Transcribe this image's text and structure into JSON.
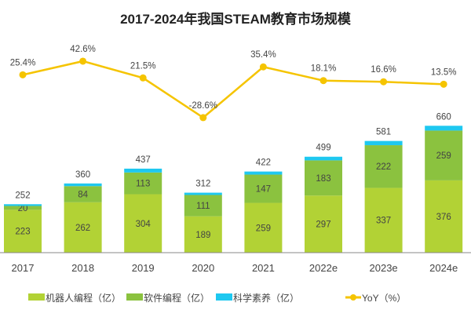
{
  "chart_data": {
    "type": "bar",
    "stacked": true,
    "title": "2017-2024年我国STEAM教育市场规模",
    "categories": [
      "2017",
      "2018",
      "2019",
      "2020",
      "2021",
      "2022e",
      "2023e",
      "2024e"
    ],
    "series": [
      {
        "name": "机器人编程（亿）",
        "values": [
          223,
          262,
          304,
          189,
          259,
          297,
          337,
          376
        ],
        "color": "#b2d235"
      },
      {
        "name": "软件编程（亿）",
        "values": [
          20,
          84,
          113,
          111,
          147,
          183,
          222,
          259
        ],
        "color": "#8bc23f"
      },
      {
        "name": "科学素养（亿）",
        "values": [
          9,
          14,
          20,
          12,
          16,
          19,
          22,
          25
        ],
        "color": "#1ec8f0"
      }
    ],
    "totals": [
      252,
      360,
      437,
      312,
      422,
      499,
      581,
      660
    ],
    "line": {
      "name": "YoY（%）",
      "values": [
        25.4,
        42.6,
        21.5,
        -28.6,
        35.4,
        18.1,
        16.6,
        13.5
      ],
      "labels": [
        "25.4%",
        "42.6%",
        "21.5%",
        "-28.6%",
        "35.4%",
        "18.1%",
        "16.6%",
        "13.5%"
      ],
      "color": "#f5c400"
    },
    "grid": false,
    "legend": "bottom"
  }
}
